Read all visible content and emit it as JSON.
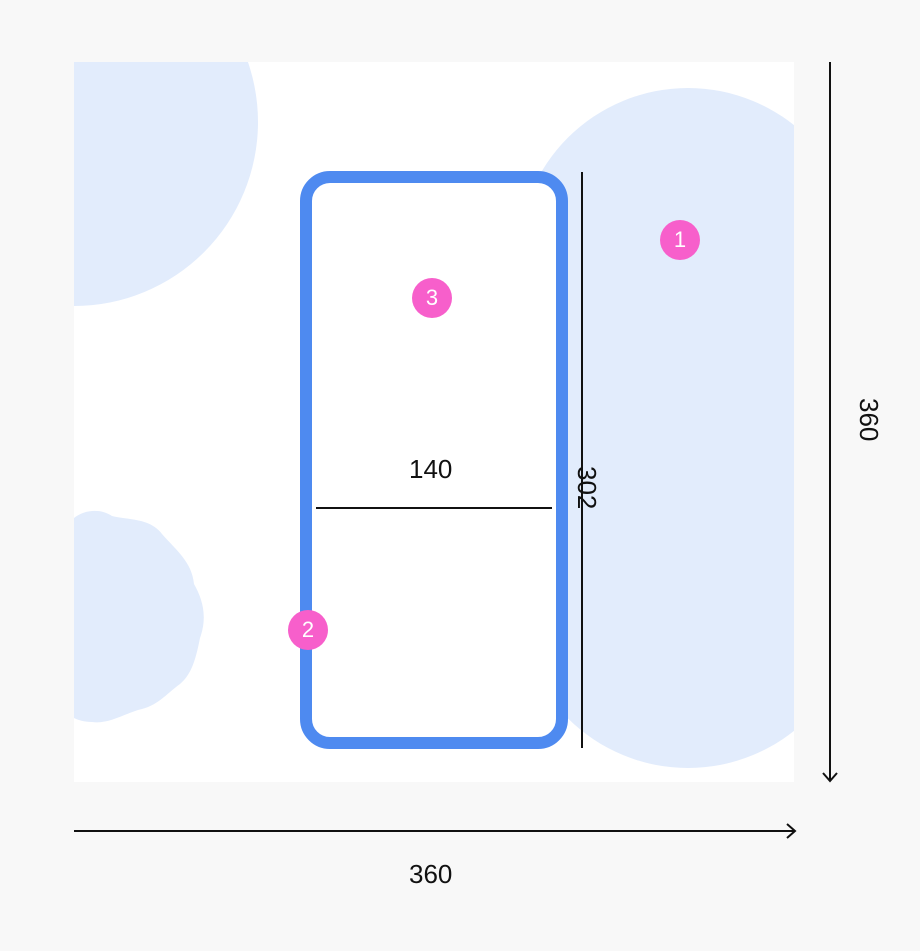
{
  "diagram": {
    "colors": {
      "page_background": "#f8f8f8",
      "canvas": "#ffffff",
      "shape_fill": "#e2ecfc",
      "container_stroke": "#4e8af0",
      "marker": "#f75fcb",
      "dimension_line": "#111111"
    },
    "dimensions": {
      "canvas_width": "360",
      "canvas_height": "360",
      "container_width": "140",
      "container_height": "302"
    },
    "markers": [
      "1",
      "2",
      "3"
    ]
  }
}
